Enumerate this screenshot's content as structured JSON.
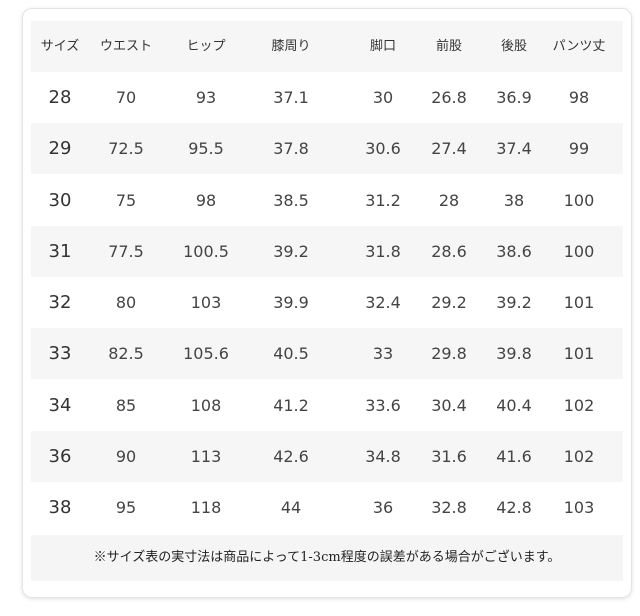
{
  "headers": [
    "サイズ",
    "ウエスト",
    "ヒップ",
    "膝周り",
    "脚口",
    "前股",
    "後股",
    "パンツ丈"
  ],
  "rows": [
    [
      "28",
      "70",
      "93",
      "37.1",
      "30",
      "26.8",
      "36.9",
      "98"
    ],
    [
      "29",
      "72.5",
      "95.5",
      "37.8",
      "30.6",
      "27.4",
      "37.4",
      "99"
    ],
    [
      "30",
      "75",
      "98",
      "38.5",
      "31.2",
      "28",
      "38",
      "100"
    ],
    [
      "31",
      "77.5",
      "100.5",
      "39.2",
      "31.8",
      "28.6",
      "38.6",
      "100"
    ],
    [
      "32",
      "80",
      "103",
      "39.9",
      "32.4",
      "29.2",
      "39.2",
      "101"
    ],
    [
      "33",
      "82.5",
      "105.6",
      "40.5",
      "33",
      "29.8",
      "39.8",
      "101"
    ],
    [
      "34",
      "85",
      "108",
      "41.2",
      "33.6",
      "30.4",
      "40.4",
      "102"
    ],
    [
      "36",
      "90",
      "113",
      "42.6",
      "34.8",
      "31.6",
      "41.6",
      "102"
    ],
    [
      "38",
      "95",
      "118",
      "44",
      "36",
      "32.8",
      "42.8",
      "103"
    ]
  ],
  "note": "※サイズ表の実寸法は商品によって1-3cm程度の誤差がある場合がございます。"
}
